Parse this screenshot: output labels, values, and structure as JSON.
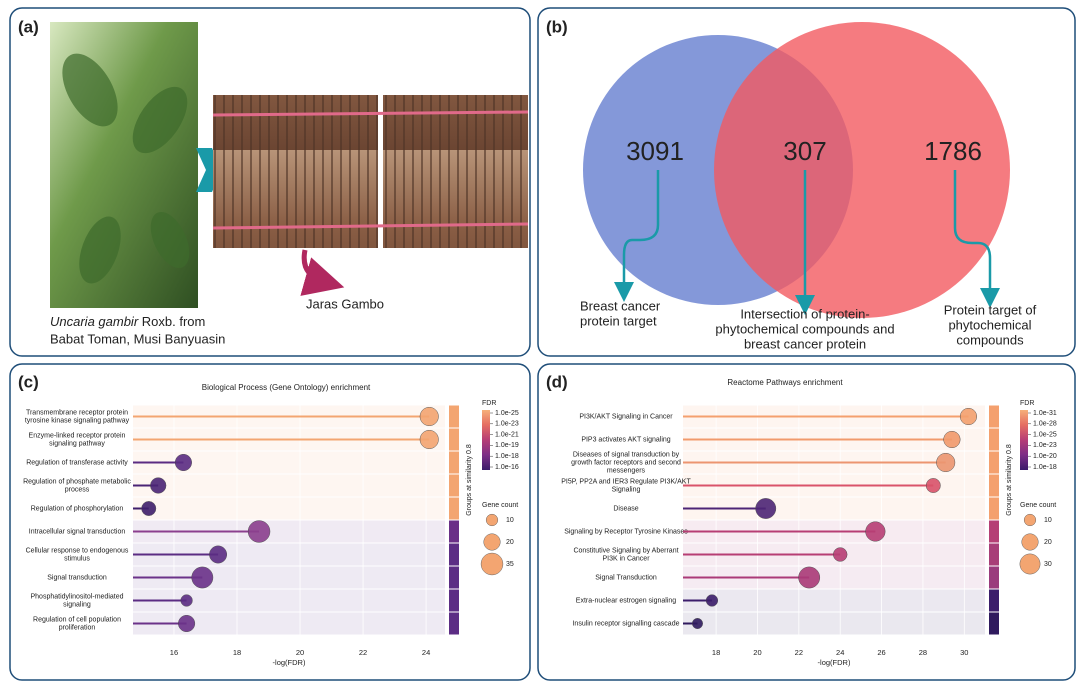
{
  "panel_a": {
    "label": "(a)",
    "caption_italic": "Uncaria gambir",
    "caption_rest": " Roxb. from",
    "caption_line2": "Babat Toman, Musi Banyuasin",
    "product_label": "Jaras Gambo"
  },
  "panel_b": {
    "label": "(b)",
    "left_only": 3091,
    "intersection": 307,
    "right_only": 1786,
    "left_annotation": [
      "Breast cancer",
      "protein target"
    ],
    "middle_annotation": [
      "Intersection of protein-",
      "phytochemical compounds and",
      "breast cancer protein"
    ],
    "right_annotation": [
      "Protein target of",
      "phytochemical",
      "compounds"
    ]
  },
  "chart_data": [
    {
      "type": "lollipop",
      "panel_label": "(c)",
      "title": "Biological Process (Gene Ontology) enrichment",
      "x_label": "-log(FDR)",
      "categories": [
        [
          "Transmembrane receptor protein",
          "tyrosine kinase signaling pathway"
        ],
        [
          "Enzyme-linked receptor protein",
          "signaling pathway"
        ],
        [
          "Regulation of transferase activity"
        ],
        [
          "Regulation of phosphate metabolic",
          "process"
        ],
        [
          "Regulation of phosphorylation"
        ],
        [
          "Intracellular signal transduction"
        ],
        [
          "Cellular response to endogenous",
          "stimulus"
        ],
        [
          "Signal transduction"
        ],
        [
          "Phosphatidylinositol-mediated",
          "signaling"
        ],
        [
          "Regulation of cell population",
          "proliferation"
        ]
      ],
      "values": [
        24.1,
        24.1,
        16.3,
        15.5,
        15.2,
        18.7,
        17.4,
        16.9,
        16.4,
        16.4
      ],
      "sizes": [
        25,
        25,
        20,
        18,
        15,
        35,
        22,
        33,
        10,
        20
      ],
      "colors": [
        "#f3a571",
        "#f3a571",
        "#5b2c83",
        "#4a2475",
        "#3f1f6b",
        "#8b3f8e",
        "#5b2c83",
        "#6b3289",
        "#5b2c83",
        "#6b3289"
      ],
      "group_colors": [
        "#f3a571",
        "#f3a571",
        "#f3a571",
        "#f3a571",
        "#f3a571",
        "#6a2f87",
        "#5c2d85",
        "#5c2d85",
        "#5c2d85",
        "#5c2d85"
      ],
      "group_axis_label": "Groups at similarity 0.8",
      "xlim": [
        14.7,
        24.6
      ],
      "xticks": [
        16,
        18,
        20,
        22,
        24
      ],
      "color_legend": {
        "title": "FDR",
        "labels": [
          "1.0e-25",
          "1.0e-23",
          "1.0e-21",
          "1.0e-19",
          "1.0e-18",
          "1.0e-16"
        ],
        "colors": [
          "#f6b07a",
          "#e56d62",
          "#b63d76",
          "#7d2e86",
          "#3b1b6a"
        ]
      },
      "size_legend": {
        "title": "Gene count",
        "values": [
          10,
          20,
          35
        ]
      }
    },
    {
      "type": "lollipop",
      "panel_label": "(d)",
      "title": "Reactome Pathways enrichment",
      "x_label": "-log(FDR)",
      "categories": [
        [
          "PI3K/AKT Signaling in Cancer"
        ],
        [
          "PIP3 activates AKT signaling"
        ],
        [
          "Diseases of signal transduction by",
          "growth factor receptors and second",
          "messengers"
        ],
        [
          "PI5P, PP2A and IER3 Regulate PI3K/AKT",
          "Signaling"
        ],
        [
          "Disease"
        ],
        [
          "Signaling by Receptor Tyrosine Kinases"
        ],
        [
          "Constitutive Signaling by Aberrant",
          "PI3K in Cancer"
        ],
        [
          "Signal Transduction"
        ],
        [
          "Extra-nuclear estrogen signaling"
        ],
        [
          "Insulin receptor signalling cascade"
        ]
      ],
      "values": [
        30.2,
        29.4,
        29.1,
        28.5,
        20.4,
        25.7,
        24.0,
        22.5,
        17.8,
        17.1
      ],
      "sizes": [
        20,
        20,
        25,
        15,
        30,
        28,
        14,
        33,
        10,
        8
      ],
      "colors": [
        "#f4a06e",
        "#f19a6c",
        "#ec9570",
        "#d9536a",
        "#4d2576",
        "#b73e74",
        "#b73e74",
        "#aa3a78",
        "#3b1d6b",
        "#2f1a5e"
      ],
      "group_colors": [
        "#f4a06e",
        "#f4a06e",
        "#f4a06e",
        "#f4a06e",
        "#f4a06e",
        "#b53f75",
        "#a83e78",
        "#9a3b7d",
        "#3b1d6b",
        "#2f1a5e"
      ],
      "group_axis_label": "Groups at similarity 0.8",
      "xlim": [
        16.4,
        31.0
      ],
      "xticks": [
        18,
        20,
        22,
        24,
        26,
        28,
        30
      ],
      "color_legend": {
        "title": "FDR",
        "labels": [
          "1.0e-31",
          "1.0e-28",
          "1.0e-25",
          "1.0e-23",
          "1.0e-20",
          "1.0e-18"
        ],
        "colors": [
          "#f6b07a",
          "#e56d62",
          "#b63d76",
          "#7d2e86",
          "#3b1b6a"
        ]
      },
      "size_legend": {
        "title": "Gene count",
        "values": [
          10,
          20,
          30
        ]
      }
    }
  ]
}
